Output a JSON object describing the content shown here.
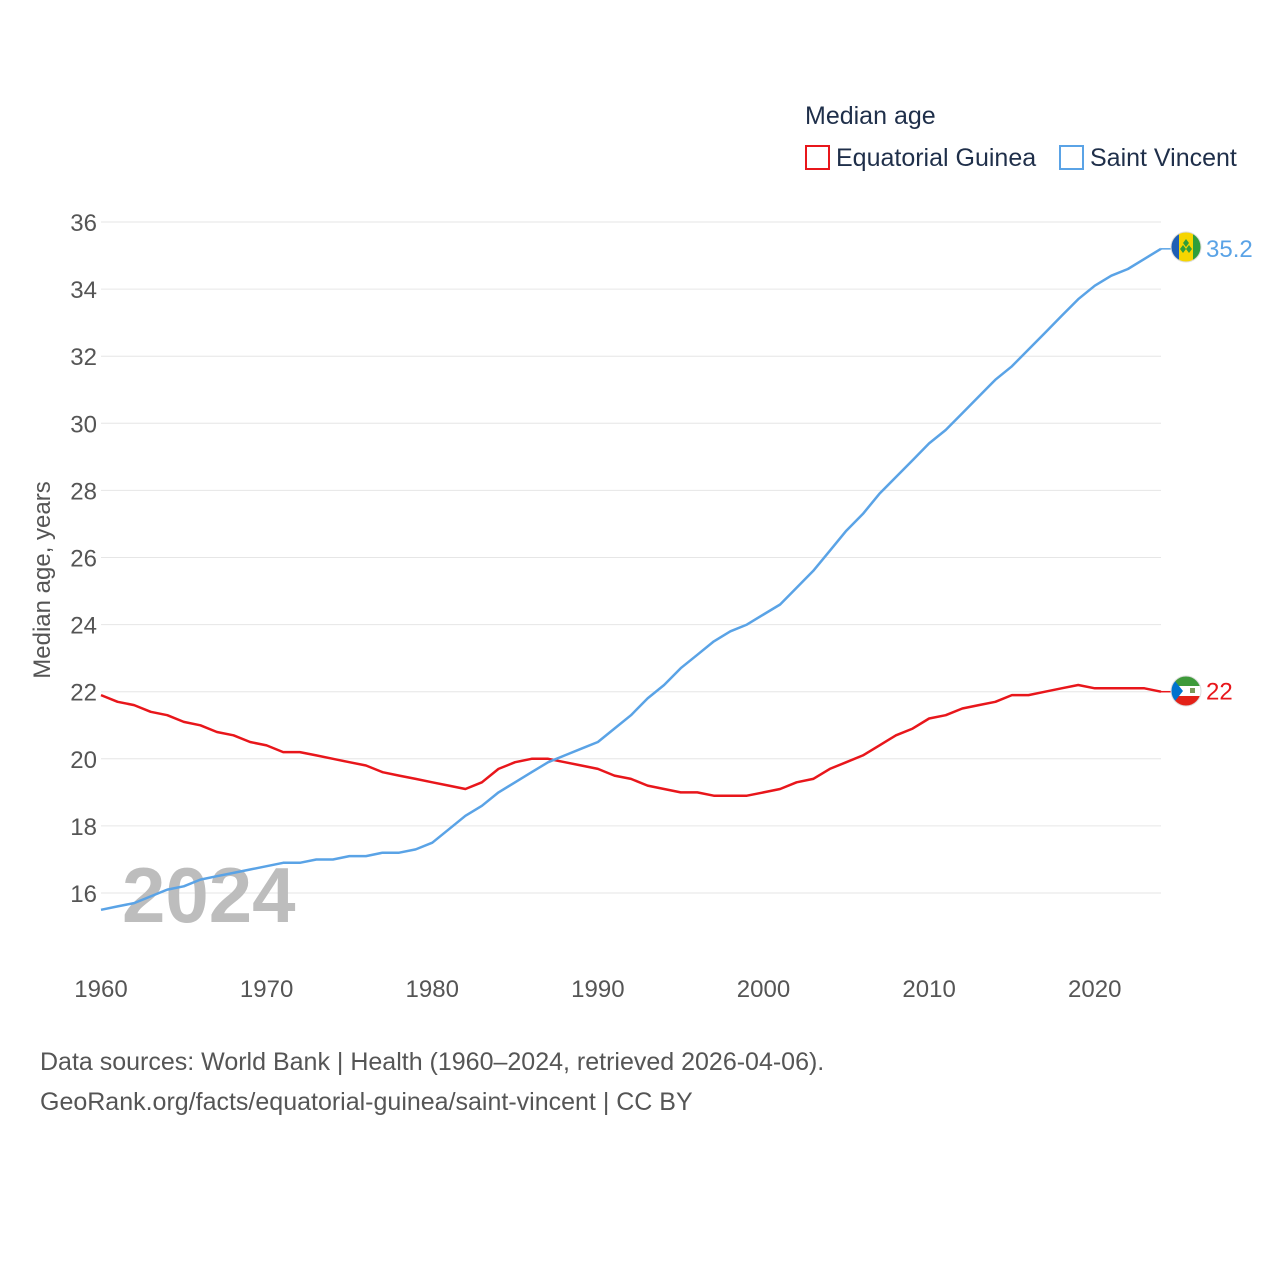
{
  "chart_data": {
    "type": "line",
    "title": "Median age",
    "xlabel": "",
    "ylabel": "Median age, years",
    "xlim": [
      1960,
      2024
    ],
    "ylim": [
      15,
      36
    ],
    "yticks": [
      16,
      18,
      20,
      22,
      24,
      26,
      28,
      30,
      32,
      34,
      36
    ],
    "xticks": [
      1960,
      1970,
      1980,
      1990,
      2000,
      2010,
      2020
    ],
    "year_watermark": "2024",
    "x": [
      1960,
      1961,
      1962,
      1963,
      1964,
      1965,
      1966,
      1967,
      1968,
      1969,
      1970,
      1971,
      1972,
      1973,
      1974,
      1975,
      1976,
      1977,
      1978,
      1979,
      1980,
      1981,
      1982,
      1983,
      1984,
      1985,
      1986,
      1987,
      1988,
      1989,
      1990,
      1991,
      1992,
      1993,
      1994,
      1995,
      1996,
      1997,
      1998,
      1999,
      2000,
      2001,
      2002,
      2003,
      2004,
      2005,
      2006,
      2007,
      2008,
      2009,
      2010,
      2011,
      2012,
      2013,
      2014,
      2015,
      2016,
      2017,
      2018,
      2019,
      2020,
      2021,
      2022,
      2023,
      2024
    ],
    "series": [
      {
        "name": "Equatorial Guinea",
        "color": "#e8161b",
        "end_label": "22",
        "values": [
          21.9,
          21.7,
          21.6,
          21.4,
          21.3,
          21.1,
          21.0,
          20.8,
          20.7,
          20.5,
          20.4,
          20.2,
          20.2,
          20.1,
          20.0,
          19.9,
          19.8,
          19.6,
          19.5,
          19.4,
          19.3,
          19.2,
          19.1,
          19.3,
          19.7,
          19.9,
          20.0,
          20.0,
          19.9,
          19.8,
          19.7,
          19.5,
          19.4,
          19.2,
          19.1,
          19.0,
          19.0,
          18.9,
          18.9,
          18.9,
          19.0,
          19.1,
          19.3,
          19.4,
          19.7,
          19.9,
          20.1,
          20.4,
          20.7,
          20.9,
          21.2,
          21.3,
          21.5,
          21.6,
          21.7,
          21.9,
          21.9,
          22.0,
          22.1,
          22.2,
          22.1,
          22.1,
          22.1,
          22.1,
          22.0
        ]
      },
      {
        "name": "Saint Vincent",
        "color": "#5aa3e6",
        "end_label": "35.2",
        "values": [
          15.5,
          15.6,
          15.7,
          15.9,
          16.1,
          16.2,
          16.4,
          16.5,
          16.6,
          16.7,
          16.8,
          16.9,
          16.9,
          17.0,
          17.0,
          17.1,
          17.1,
          17.2,
          17.2,
          17.3,
          17.5,
          17.9,
          18.3,
          18.6,
          19.0,
          19.3,
          19.6,
          19.9,
          20.1,
          20.3,
          20.5,
          20.9,
          21.3,
          21.8,
          22.2,
          22.7,
          23.1,
          23.5,
          23.8,
          24.0,
          24.3,
          24.6,
          25.1,
          25.6,
          26.2,
          26.8,
          27.3,
          27.9,
          28.4,
          28.9,
          29.4,
          29.8,
          30.3,
          30.8,
          31.3,
          31.7,
          32.2,
          32.7,
          33.2,
          33.7,
          34.1,
          34.4,
          34.6,
          34.9,
          35.2
        ]
      }
    ]
  },
  "legend": {
    "title": "Median age"
  },
  "footer": {
    "line1": "Data sources: World Bank | Health (1960–2024, retrieved 2026-04-06).",
    "line2": "GeoRank.org/facts/equatorial-guinea/saint-vincent | CC BY"
  },
  "icons": {
    "flag_svg": "saint-vincent-flag-icon",
    "flag_gq": "equatorial-guinea-flag-icon"
  }
}
